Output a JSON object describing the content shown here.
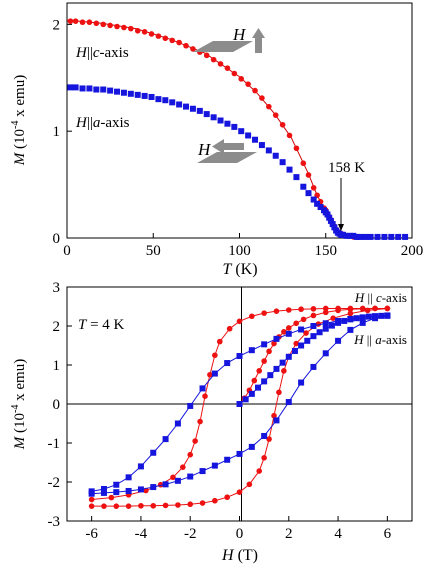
{
  "colors": {
    "red_series": "#ee1111",
    "blue_series": "#1515dd",
    "fit_line": "#cc0000",
    "icon_gray": "#8c8c8c",
    "axis": "#000000"
  },
  "chart_data": [
    {
      "type": "scatter",
      "panel": "top",
      "xlabel_var": "T",
      "xlabel_unit": " (K)",
      "ylabel_var": "M",
      "ylabel_unit_pre": " (10",
      "ylabel_sup": "-4",
      "ylabel_unit_post": " x emu)",
      "xlim": [
        0,
        200
      ],
      "ylim": [
        0,
        2.2
      ],
      "xticks": [
        0,
        50,
        100,
        150,
        200
      ],
      "xtick_labels": [
        "0",
        "50",
        "100",
        "150",
        "200"
      ],
      "yticks": [
        0,
        1,
        2
      ],
      "ytick_labels": [
        "0",
        "1",
        "2"
      ],
      "grid": false,
      "icons": [
        "sample-plate-field-up-icon",
        "sample-plate-field-left-icon"
      ],
      "annotations": {
        "c_axis_label": {
          "var": "H",
          "sep": "||",
          "axis_letter": "c",
          "suffix": "-axis"
        },
        "a_axis_label": {
          "var": "H",
          "sep": "||",
          "axis_letter": "a",
          "suffix": "-axis"
        },
        "field_up_label": "H",
        "field_left_label": "H",
        "transition": "158 K"
      },
      "series": [
        {
          "key": "c",
          "color": "red",
          "x": [
            2,
            5,
            9,
            13,
            17,
            21,
            25,
            29,
            33,
            37,
            41,
            45,
            49,
            53,
            57,
            61,
            65,
            69,
            73,
            77,
            81,
            85,
            89,
            93,
            97,
            101,
            105,
            109,
            113,
            117,
            121,
            125,
            129,
            133,
            137,
            140,
            143,
            145,
            147,
            149,
            150,
            151,
            152,
            153,
            154,
            155,
            156,
            157,
            158,
            159,
            160,
            162,
            164,
            166,
            168,
            170,
            173,
            176,
            180,
            184,
            188,
            192,
            196
          ],
          "y": [
            2.03,
            2.03,
            2.02,
            2.02,
            2.01,
            2.0,
            1.99,
            1.98,
            1.97,
            1.96,
            1.94,
            1.93,
            1.91,
            1.89,
            1.87,
            1.85,
            1.83,
            1.8,
            1.77,
            1.74,
            1.71,
            1.67,
            1.63,
            1.59,
            1.54,
            1.49,
            1.44,
            1.38,
            1.31,
            1.23,
            1.15,
            1.06,
            0.96,
            0.84,
            0.7,
            0.59,
            0.47,
            0.4,
            0.34,
            0.28,
            0.26,
            0.23,
            0.2,
            0.17,
            0.14,
            0.11,
            0.08,
            0.06,
            0.05,
            0.04,
            0.03,
            0.02,
            0.02,
            0.01,
            0.01,
            0.01,
            0.01,
            0.01,
            0.01,
            0.01,
            0.01,
            0.01,
            0.01
          ]
        },
        {
          "key": "a",
          "color": "blue",
          "x": [
            2,
            5,
            9,
            13,
            17,
            21,
            25,
            29,
            33,
            37,
            41,
            45,
            49,
            53,
            57,
            61,
            65,
            69,
            73,
            77,
            81,
            85,
            89,
            93,
            97,
            101,
            105,
            109,
            113,
            117,
            121,
            125,
            129,
            133,
            137,
            140,
            143,
            145,
            147,
            149,
            150,
            151,
            152,
            153,
            154,
            155,
            156,
            157,
            158,
            159,
            160,
            162,
            164,
            166,
            168,
            170,
            173,
            176,
            180,
            184,
            188,
            192,
            196
          ],
          "y": [
            1.41,
            1.41,
            1.4,
            1.4,
            1.39,
            1.39,
            1.38,
            1.37,
            1.36,
            1.35,
            1.34,
            1.33,
            1.32,
            1.3,
            1.29,
            1.27,
            1.25,
            1.23,
            1.21,
            1.19,
            1.16,
            1.13,
            1.1,
            1.07,
            1.04,
            1.0,
            0.96,
            0.92,
            0.87,
            0.82,
            0.77,
            0.71,
            0.64,
            0.57,
            0.48,
            0.42,
            0.36,
            0.32,
            0.29,
            0.26,
            0.24,
            0.22,
            0.19,
            0.16,
            0.13,
            0.1,
            0.07,
            0.05,
            0.04,
            0.03,
            0.03,
            0.02,
            0.02,
            0.02,
            0.01,
            0.01,
            0.01,
            0.01,
            0.01,
            0.01,
            0.01,
            0.01,
            0.01
          ]
        }
      ],
      "fit_line": {
        "x": [
          0,
          20,
          40,
          60,
          80,
          100,
          110,
          120,
          130,
          140,
          145,
          150,
          153,
          156,
          158,
          160,
          162
        ],
        "y": [
          2.04,
          2.01,
          1.96,
          1.86,
          1.73,
          1.51,
          1.36,
          1.17,
          0.94,
          0.6,
          0.4,
          0.25,
          0.17,
          0.09,
          0.05,
          0.02,
          0.0
        ]
      }
    },
    {
      "type": "scatter",
      "panel": "bottom",
      "xlabel_var": "H",
      "xlabel_unit": " (T)",
      "ylabel_var": "M",
      "ylabel_unit_pre": " (10",
      "ylabel_sup": "-4",
      "ylabel_unit_post": " x emu)",
      "xlim": [
        -7,
        7
      ],
      "ylim": [
        -3,
        3
      ],
      "xticks": [
        -6,
        -4,
        -2,
        0,
        2,
        4,
        6
      ],
      "xtick_labels": [
        "-6",
        "-4",
        "-2",
        "0",
        "2",
        "4",
        "6"
      ],
      "yticks": [
        -3,
        -2,
        -1,
        0,
        1,
        2,
        3
      ],
      "ytick_labels": [
        "-3",
        "-2",
        "-1",
        "0",
        "1",
        "2",
        "3"
      ],
      "grid": false,
      "annotations": {
        "temperature_var": "T",
        "temperature_value": " = 4 K",
        "c_axis_label": {
          "var": "H",
          "sep": " || ",
          "axis_letter": "c",
          "suffix": "-axis"
        },
        "a_axis_label": {
          "var": "H",
          "sep": " || ",
          "axis_letter": "a",
          "suffix": "-axis"
        }
      },
      "series": [
        {
          "key": "c",
          "color": "red",
          "branches": [
            {
              "x": [
                0,
                0.2,
                0.4,
                0.6,
                0.8,
                1.0,
                1.2,
                1.4,
                1.6,
                1.8,
                2.0,
                2.3,
                2.6,
                3.0,
                3.5,
                4.0,
                4.5,
                5.0,
                5.5,
                6.0
              ],
              "y": [
                0.0,
                0.15,
                0.35,
                0.6,
                0.85,
                1.1,
                1.35,
                1.55,
                1.72,
                1.85,
                1.95,
                2.07,
                2.17,
                2.27,
                2.35,
                2.4,
                2.43,
                2.44,
                2.45,
                2.45
              ]
            },
            {
              "x": [
                6.0,
                5.5,
                5.0,
                4.5,
                4.0,
                3.5,
                3.0,
                2.5,
                2.0,
                1.5,
                1.0,
                0.5,
                0.0,
                -0.4,
                -0.8,
                -1.0,
                -1.2,
                -1.4,
                -1.6,
                -1.8,
                -2.0,
                -2.3,
                -2.7,
                -3.2,
                -3.8,
                -4.5,
                -5.2,
                -6.0
              ],
              "y": [
                2.45,
                2.45,
                2.45,
                2.45,
                2.45,
                2.45,
                2.44,
                2.43,
                2.41,
                2.38,
                2.33,
                2.25,
                2.12,
                1.93,
                1.6,
                1.25,
                0.75,
                0.2,
                -0.45,
                -0.95,
                -1.3,
                -1.62,
                -1.88,
                -2.07,
                -2.22,
                -2.33,
                -2.4,
                -2.45
              ]
            },
            {
              "x": [
                -6.0,
                -5.5,
                -5.0,
                -4.5,
                -4.0,
                -3.5,
                -3.0,
                -2.5,
                -2.0,
                -1.5,
                -1.0,
                -0.5,
                0.0,
                0.4,
                0.8,
                1.0,
                1.2,
                1.4,
                1.6,
                1.8,
                2.0,
                2.3,
                2.7,
                3.2,
                3.8,
                4.5,
                5.2,
                6.0
              ],
              "y": [
                -2.62,
                -2.62,
                -2.62,
                -2.62,
                -2.61,
                -2.61,
                -2.6,
                -2.59,
                -2.57,
                -2.54,
                -2.48,
                -2.39,
                -2.26,
                -2.06,
                -1.72,
                -1.38,
                -0.9,
                -0.3,
                0.3,
                0.85,
                1.22,
                1.55,
                1.82,
                2.05,
                2.2,
                2.32,
                2.4,
                2.45
              ]
            }
          ]
        },
        {
          "key": "a",
          "color": "blue",
          "branches": [
            {
              "x": [
                0,
                0.25,
                0.5,
                0.75,
                1.0,
                1.25,
                1.5,
                1.75,
                2.0,
                2.25,
                2.5,
                2.75,
                3.0,
                3.25,
                3.5,
                3.75,
                4.0,
                4.25,
                4.5,
                4.75,
                5.0,
                5.25,
                5.5,
                5.75,
                6.0
              ],
              "y": [
                0.0,
                0.12,
                0.26,
                0.42,
                0.58,
                0.74,
                0.9,
                1.06,
                1.21,
                1.36,
                1.5,
                1.62,
                1.74,
                1.84,
                1.93,
                2.01,
                2.08,
                2.13,
                2.17,
                2.2,
                2.22,
                2.24,
                2.25,
                2.26,
                2.27
              ]
            },
            {
              "x": [
                6.0,
                5.5,
                5.0,
                4.5,
                4.0,
                3.5,
                3.0,
                2.5,
                2.0,
                1.5,
                1.0,
                0.5,
                0.0,
                -0.5,
                -1.0,
                -1.5,
                -2.0,
                -2.5,
                -3.0,
                -3.5,
                -4.0,
                -4.5,
                -5.0,
                -5.5,
                -6.0
              ],
              "y": [
                2.27,
                2.25,
                2.22,
                2.18,
                2.13,
                2.07,
                2.0,
                1.91,
                1.8,
                1.67,
                1.53,
                1.38,
                1.23,
                1.05,
                0.78,
                0.4,
                -0.05,
                -0.5,
                -0.9,
                -1.25,
                -1.6,
                -1.88,
                -2.07,
                -2.18,
                -2.24
              ]
            },
            {
              "x": [
                -6.0,
                -5.5,
                -5.0,
                -4.5,
                -4.0,
                -3.5,
                -3.0,
                -2.5,
                -2.0,
                -1.5,
                -1.0,
                -0.5,
                0.0,
                0.5,
                1.0,
                1.5,
                2.0,
                2.5,
                3.0,
                3.5,
                4.0,
                4.5,
                5.0,
                5.5,
                6.0
              ],
              "y": [
                -2.3,
                -2.28,
                -2.26,
                -2.23,
                -2.19,
                -2.13,
                -2.06,
                -1.97,
                -1.86,
                -1.72,
                -1.58,
                -1.43,
                -1.28,
                -1.1,
                -0.82,
                -0.42,
                0.05,
                0.55,
                0.95,
                1.3,
                1.62,
                1.9,
                2.08,
                2.2,
                2.26
              ]
            }
          ]
        }
      ]
    }
  ]
}
